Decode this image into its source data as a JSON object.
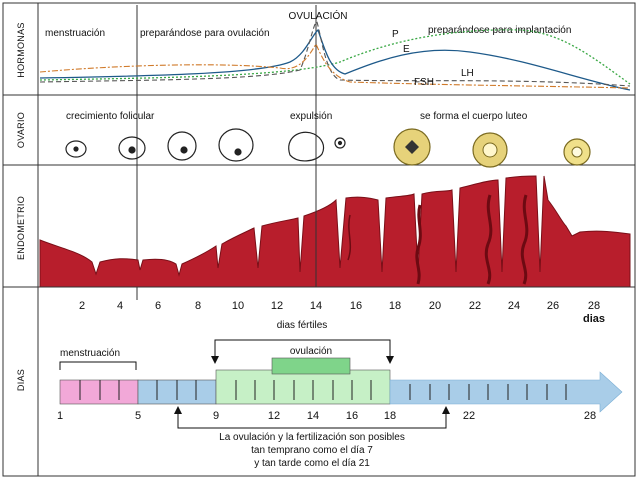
{
  "sections": {
    "hormonas": "HORMONAS",
    "ovario": "OVARIO",
    "endometrio": "ENDOMETRIO",
    "dias": "DIAS"
  },
  "hormones": {
    "ovulacion": "OVULACIÓN",
    "menstruacion": "menstruación",
    "preparandose_ovulacion": "preparándose para ovulación",
    "preparandose_implantacion": "preparándose para implantación",
    "curve_p": "P",
    "curve_e": "E",
    "curve_lh": "LH",
    "curve_fsh": "FSH",
    "colors": {
      "p": "#3aa845",
      "e": "#1e5a8a",
      "lh": "#555555",
      "fsh": "#d07a2a"
    }
  },
  "ovary": {
    "crecimiento": "crecimiento folicular",
    "expulsion": "expulsión",
    "cuerpo_luteo": "se forma el cuerpo luteo"
  },
  "endometrium": {
    "ticks": [
      "2",
      "4",
      "6",
      "8",
      "10",
      "12",
      "14",
      "16",
      "18",
      "20",
      "22",
      "24",
      "26",
      "28"
    ],
    "unit": "dias",
    "color": "#b81e2c"
  },
  "days": {
    "fertiles": "dias fértiles",
    "menstruacion": "menstruación",
    "ovulacion": "ovulación",
    "numbers": [
      "1",
      "5",
      "9",
      "12",
      "14",
      "16",
      "18",
      "22",
      "28"
    ],
    "note_line1": "La ovulación y la fertilización son posibles",
    "note_line2": "tan temprano como el día 7",
    "note_line3": "y tan tarde como el día 21",
    "colors": {
      "menstruation": "#f2a8d8",
      "follicular": "#a9cde8",
      "fertile": "#c6f0c6",
      "ovulation": "#7fd48a",
      "arrow": "#a9cde8"
    }
  }
}
